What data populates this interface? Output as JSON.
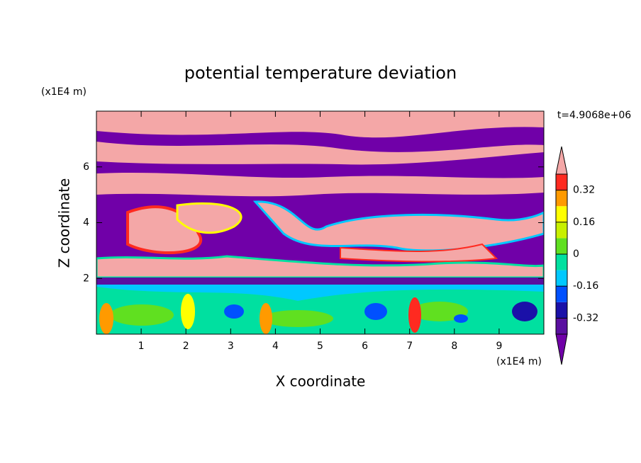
{
  "chart_data": {
    "type": "contour",
    "title": "potential temperature deviation",
    "xlabel": "X coordinate",
    "ylabel": "Z coordinate",
    "x_unit_label": "(x1E4 m)",
    "y_unit_label": "(x1E4 m)",
    "time_label": "t=4.9068e+06",
    "xlim": [
      0,
      10
    ],
    "xticks": [
      1,
      2,
      3,
      4,
      5,
      6,
      7,
      8,
      9
    ],
    "ylim": [
      0,
      8
    ],
    "yticks": [
      2,
      4,
      6
    ],
    "clim": [
      -0.4,
      0.4
    ],
    "colorbar_ticks": [
      -0.32,
      -0.16,
      0,
      0.16,
      0.32
    ],
    "colors": [
      "#5a0fa0",
      "#1a10a8",
      "#0050ff",
      "#00c8ff",
      "#00e0a0",
      "#60e020",
      "#c8f000",
      "#ffff00",
      "#ff9a00",
      "#ff2a20"
    ],
    "under_color": "#7000a8",
    "over_color": "#f4a7a7"
  }
}
